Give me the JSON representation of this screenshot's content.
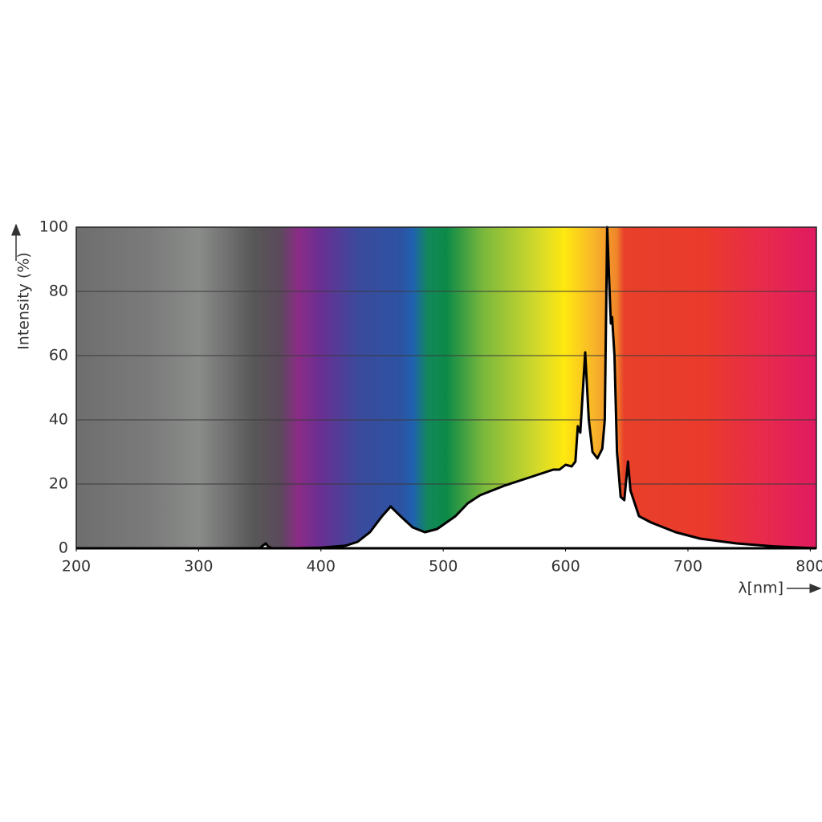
{
  "chart_data": {
    "type": "area",
    "ylabel": "Intensity (%)",
    "xlabel": "λ[nm]",
    "x": [
      200,
      300,
      350,
      353,
      355,
      357,
      360,
      380,
      400,
      420,
      430,
      440,
      450,
      457,
      465,
      475,
      485,
      495,
      510,
      520,
      530,
      550,
      570,
      590,
      595,
      600,
      605,
      608,
      610,
      612,
      616,
      619,
      622,
      626,
      630,
      632,
      634,
      636,
      637,
      638,
      640,
      642,
      645,
      648,
      651,
      653,
      660,
      670,
      690,
      710,
      740,
      770,
      805
    ],
    "values": [
      0,
      0,
      0,
      1,
      1.5,
      0.5,
      0,
      0,
      0.2,
      0.8,
      2,
      5,
      10,
      13,
      10,
      6.5,
      5,
      6,
      10,
      14,
      16.5,
      19.5,
      22,
      24.5,
      24.5,
      26,
      25.5,
      27,
      38,
      36,
      61,
      40,
      30,
      28,
      31,
      40,
      100,
      80,
      70,
      72,
      60,
      30,
      16,
      15,
      27,
      18,
      10,
      8,
      5,
      3,
      1.5,
      0.6,
      0
    ],
    "xlim": [
      200,
      805
    ],
    "ylim": [
      0,
      100
    ],
    "xticks": [
      200,
      300,
      400,
      500,
      600,
      700,
      800
    ],
    "yticks": [
      0,
      20,
      40,
      60,
      80,
      100
    ],
    "grid": true,
    "line_color": "#000000",
    "fill_color": "#ffffff"
  }
}
